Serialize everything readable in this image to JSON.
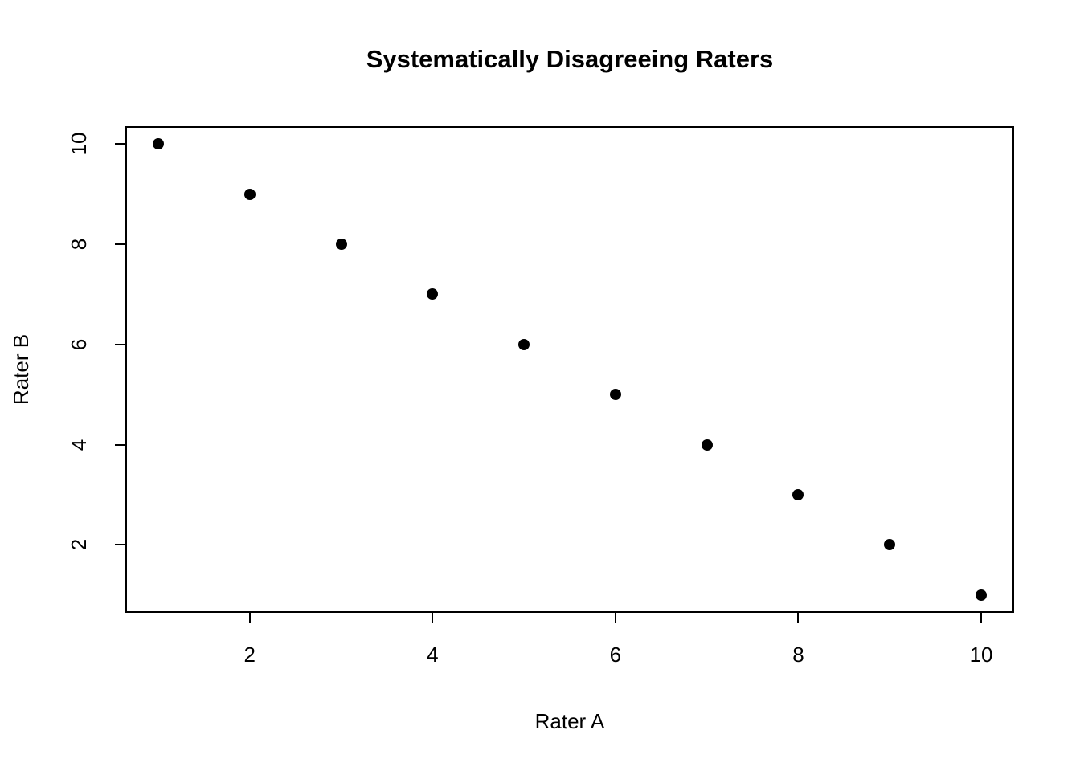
{
  "chart_data": {
    "type": "scatter",
    "title": "Systematically Disagreeing Raters",
    "xlabel": "Rater A",
    "ylabel": "Rater B",
    "x": [
      1,
      2,
      3,
      4,
      5,
      6,
      7,
      8,
      9,
      10
    ],
    "y": [
      10,
      9,
      8,
      7,
      6,
      5,
      4,
      3,
      2,
      1
    ],
    "x_ticks": [
      2,
      4,
      6,
      8,
      10
    ],
    "y_ticks": [
      2,
      4,
      6,
      8,
      10
    ],
    "xlim": [
      0.64,
      10.36
    ],
    "ylim": [
      0.64,
      10.36
    ],
    "grid": false,
    "legend": null,
    "marker": "filled-circle",
    "point_color": "#000000",
    "axis_color": "#000000",
    "background_color": "#ffffff"
  }
}
